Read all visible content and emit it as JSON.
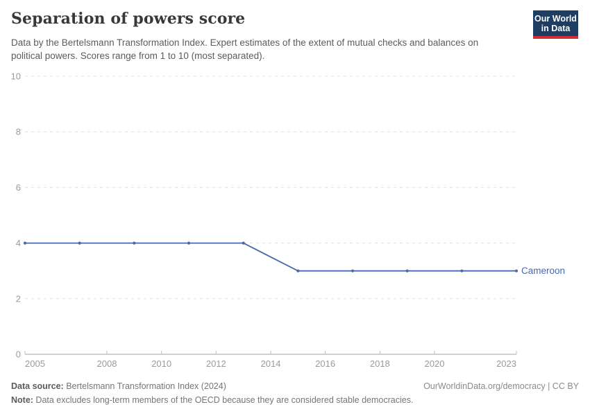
{
  "header": {
    "title": "Separation of powers score",
    "subtitle": "Data by the Bertelsmann Transformation Index. Expert estimates of the extent of mutual checks and balances on political powers. Scores range from 1 to 10 (most separated)."
  },
  "logo": {
    "line1": "Our World",
    "line2": "in Data",
    "bg_color": "#1d3d63",
    "accent_color": "#cf303c"
  },
  "chart_data": {
    "type": "line",
    "title": "Separation of powers score",
    "x": [
      2005,
      2007,
      2009,
      2011,
      2013,
      2015,
      2017,
      2019,
      2021,
      2023
    ],
    "series": [
      {
        "name": "Cameroon",
        "color": "#4868ac",
        "values": [
          4,
          4,
          4,
          4,
          4,
          3,
          3,
          3,
          3,
          3
        ]
      }
    ],
    "xlim": [
      2005,
      2023
    ],
    "ylim": [
      0,
      10
    ],
    "yticks": [
      0,
      2,
      4,
      6,
      8,
      10
    ],
    "xticks": [
      2005,
      2008,
      2010,
      2012,
      2014,
      2016,
      2018,
      2020,
      2023
    ],
    "xlabel": "",
    "ylabel": "",
    "grid": "horizontal-dashed",
    "legend": "end-of-line-label"
  },
  "colors": {
    "line": "#4868ac",
    "grid": "#e0e0e0",
    "axis": "#a3a3a3",
    "tick": "#bfbfbf",
    "tick_label": "#9a9a9a"
  },
  "footer": {
    "source_label": "Data source:",
    "source_text": " Bertelsmann Transformation Index (2024)",
    "link_text": "OurWorldinData.org/democracy | CC BY",
    "note_label": "Note:",
    "note_text": " Data excludes long-term members of the OECD because they are considered stable democracies."
  }
}
